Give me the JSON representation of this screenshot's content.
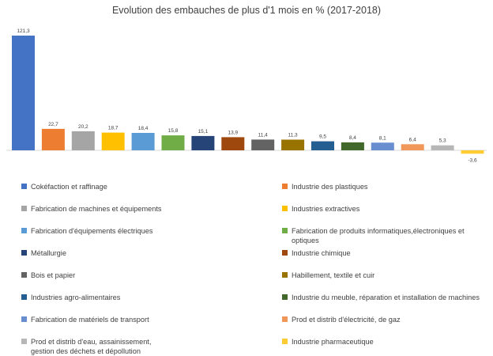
{
  "chart_data": {
    "type": "bar",
    "title": "Evolution des embauches de plus d'1 mois en % (2017-2018)",
    "xlabel": "",
    "ylabel": "",
    "ylim": [
      -3.6,
      121.3
    ],
    "grid": false,
    "legend_position": "bottom",
    "series": [
      {
        "name": "Cokéfaction et raffinage",
        "value": 121.3,
        "label": "121,3",
        "color": "#4472C4"
      },
      {
        "name": "Industrie des plastiques",
        "value": 22.7,
        "label": "22,7",
        "color": "#ED7D31"
      },
      {
        "name": "Fabrication de machines et équipements",
        "value": 20.2,
        "label": "20,2",
        "color": "#A5A5A5"
      },
      {
        "name": "Industries extractives",
        "value": 18.7,
        "label": "18,7",
        "color": "#FFC000"
      },
      {
        "name": "Fabrication d'équipements électriques",
        "value": 18.4,
        "label": "18,4",
        "color": "#5B9BD5"
      },
      {
        "name": "Fabrication de produits informatiques,électroniques et optiques",
        "value": 15.8,
        "label": "15,8",
        "color": "#70AD47"
      },
      {
        "name": "Métallurgie",
        "value": 15.1,
        "label": "15,1",
        "color": "#264478"
      },
      {
        "name": "Industrie chimique",
        "value": 13.9,
        "label": "13,9",
        "color": "#9E480E"
      },
      {
        "name": "Bois et papier",
        "value": 11.4,
        "label": "11,4",
        "color": "#636363"
      },
      {
        "name": "Habillement, textile et cuir",
        "value": 11.3,
        "label": "11,3",
        "color": "#997300"
      },
      {
        "name": "Industries agro-alimentaires",
        "value": 9.5,
        "label": "9,5",
        "color": "#255E91"
      },
      {
        "name": "Industrie du meuble, réparation et installation de machines",
        "value": 8.4,
        "label": "8,4",
        "color": "#43682B"
      },
      {
        "name": "Fabrication de matériels de transport",
        "value": 8.1,
        "label": "8,1",
        "color": "#698ED0"
      },
      {
        "name": "Prod et distrib d'électricité, de gaz",
        "value": 6.4,
        "label": "6,4",
        "color": "#F1975A"
      },
      {
        "name": "Prod et distrib d'eau, assainissement, gestion des déchets et dépollution",
        "value": 5.3,
        "label": "5,3",
        "color": "#B7B7B7"
      },
      {
        "name": "Industrie pharmaceutique",
        "value": -3.6,
        "label": "-3,6",
        "color": "#FFCD33"
      }
    ]
  },
  "legend_lines": [
    [
      "Cokéfaction et raffinage"
    ],
    [
      "Industrie des plastiques"
    ],
    [
      "Fabrication de machines et équipements"
    ],
    [
      "Industries extractives"
    ],
    [
      "Fabrication d'équipements électriques"
    ],
    [
      "Fabrication de produits informatiques,électroniques et optiques"
    ],
    [
      "Métallurgie"
    ],
    [
      "Industrie chimique"
    ],
    [
      "Bois et papier"
    ],
    [
      "Habillement, textile et cuir"
    ],
    [
      "Industries agro-alimentaires"
    ],
    [
      "Industrie du meuble, réparation et installation de machines"
    ],
    [
      "Fabrication de matériels de transport"
    ],
    [
      "Prod et distrib d'électricité, de gaz"
    ],
    [
      "Prod et distrib d'eau, assainissement,",
      "gestion des déchets et dépollution"
    ],
    [
      "Industrie pharmaceutique"
    ]
  ]
}
